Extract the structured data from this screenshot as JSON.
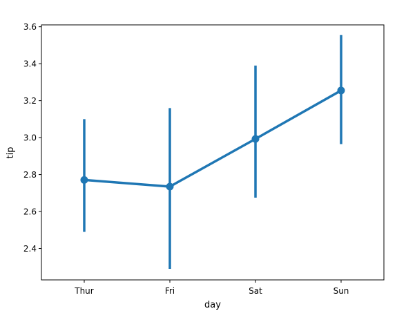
{
  "chart_data": {
    "type": "line",
    "title": "",
    "xlabel": "day",
    "ylabel": "tip",
    "categories": [
      "Thur",
      "Fri",
      "Sat",
      "Sun"
    ],
    "series": [
      {
        "values": [
          2.771,
          2.735,
          2.993,
          3.255
        ],
        "ci_low": [
          2.49,
          2.29,
          2.675,
          2.965
        ],
        "ci_high": [
          3.1,
          3.16,
          3.39,
          3.555
        ]
      }
    ],
    "yticks": [
      "2.4",
      "2.6",
      "2.8",
      "3.0",
      "3.2",
      "3.4",
      "3.6"
    ],
    "ylim": [
      2.23,
      3.61
    ],
    "grid": false,
    "legend": "none",
    "color": "#1f77b4"
  }
}
